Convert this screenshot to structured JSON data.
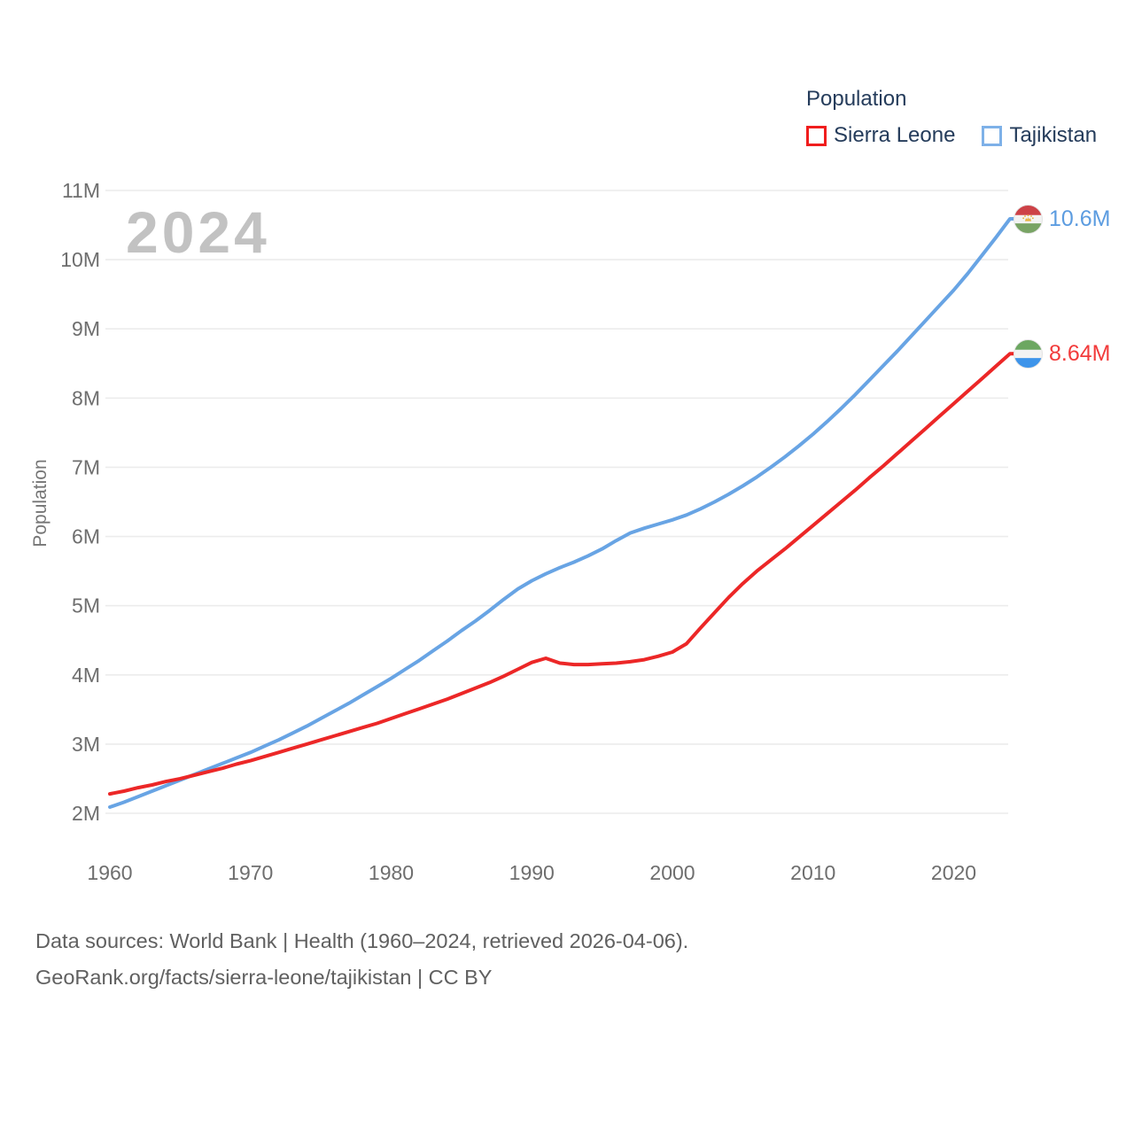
{
  "watermark": "2024",
  "legend": {
    "title": "Population",
    "items": [
      {
        "label": "Sierra Leone",
        "color": "#f01d1d"
      },
      {
        "label": "Tajikistan",
        "color": "#7eb1e8"
      }
    ]
  },
  "end_labels": [
    {
      "series": "Tajikistan",
      "value": "10.6M",
      "color": "#5c9ce0",
      "flag_icon": "tajikistan-flag"
    },
    {
      "series": "Sierra Leone",
      "value": "8.64M",
      "color": "#f23b3b",
      "flag_icon": "sierra-leone-flag"
    }
  ],
  "chart_data": {
    "type": "line",
    "title": "Population",
    "xlabel": "",
    "ylabel": "Population",
    "xlim": [
      1960,
      2024
    ],
    "ylim": [
      2,
      11
    ],
    "grid": "horizontal",
    "legend_position": "top-right",
    "x": [
      1960,
      1961,
      1962,
      1963,
      1964,
      1965,
      1966,
      1967,
      1968,
      1969,
      1970,
      1971,
      1972,
      1973,
      1974,
      1975,
      1976,
      1977,
      1978,
      1979,
      1980,
      1981,
      1982,
      1983,
      1984,
      1985,
      1986,
      1987,
      1988,
      1989,
      1990,
      1991,
      1992,
      1993,
      1994,
      1995,
      1996,
      1997,
      1998,
      1999,
      2000,
      2001,
      2002,
      2003,
      2004,
      2005,
      2006,
      2007,
      2008,
      2009,
      2010,
      2011,
      2012,
      2013,
      2014,
      2015,
      2016,
      2017,
      2018,
      2019,
      2020,
      2021,
      2022,
      2023,
      2024
    ],
    "series": [
      {
        "name": "Tajikistan",
        "color": "#68a4e4",
        "unit": "millions",
        "values": [
          2.09,
          2.16,
          2.24,
          2.32,
          2.4,
          2.48,
          2.56,
          2.64,
          2.72,
          2.8,
          2.88,
          2.97,
          3.06,
          3.16,
          3.26,
          3.37,
          3.48,
          3.59,
          3.71,
          3.83,
          3.95,
          4.08,
          4.21,
          4.35,
          4.49,
          4.64,
          4.78,
          4.93,
          5.09,
          5.24,
          5.36,
          5.46,
          5.55,
          5.63,
          5.72,
          5.82,
          5.94,
          6.05,
          6.12,
          6.18,
          6.24,
          6.31,
          6.4,
          6.5,
          6.61,
          6.73,
          6.86,
          7.0,
          7.15,
          7.31,
          7.48,
          7.66,
          7.85,
          8.05,
          8.26,
          8.47,
          8.68,
          8.9,
          9.12,
          9.34,
          9.56,
          9.8,
          10.06,
          10.32,
          10.59
        ]
      },
      {
        "name": "Sierra Leone",
        "color": "#ec2727",
        "unit": "millions",
        "values": [
          2.28,
          2.32,
          2.37,
          2.41,
          2.46,
          2.5,
          2.55,
          2.6,
          2.65,
          2.71,
          2.76,
          2.82,
          2.88,
          2.94,
          3.0,
          3.06,
          3.12,
          3.18,
          3.24,
          3.3,
          3.37,
          3.44,
          3.51,
          3.58,
          3.65,
          3.73,
          3.81,
          3.89,
          3.98,
          4.08,
          4.18,
          4.24,
          4.17,
          4.15,
          4.15,
          4.16,
          4.17,
          4.19,
          4.22,
          4.27,
          4.33,
          4.45,
          4.68,
          4.9,
          5.12,
          5.32,
          5.5,
          5.66,
          5.82,
          5.99,
          6.16,
          6.33,
          6.5,
          6.67,
          6.85,
          7.02,
          7.2,
          7.38,
          7.56,
          7.74,
          7.92,
          8.1,
          8.28,
          8.46,
          8.64
        ]
      }
    ],
    "xticks": [
      1960,
      1970,
      1980,
      1990,
      2000,
      2010,
      2020
    ],
    "yticks": {
      "values": [
        2,
        3,
        4,
        5,
        6,
        7,
        8,
        9,
        10,
        11
      ],
      "labels": [
        "2M",
        "3M",
        "4M",
        "5M",
        "6M",
        "7M",
        "8M",
        "9M",
        "10M",
        "11M"
      ]
    }
  },
  "footer": {
    "line1": "Data sources: World Bank | Health (1960–2024, retrieved 2026-04-06).",
    "line2": "GeoRank.org/facts/sierra-leone/tajikistan | CC BY"
  }
}
